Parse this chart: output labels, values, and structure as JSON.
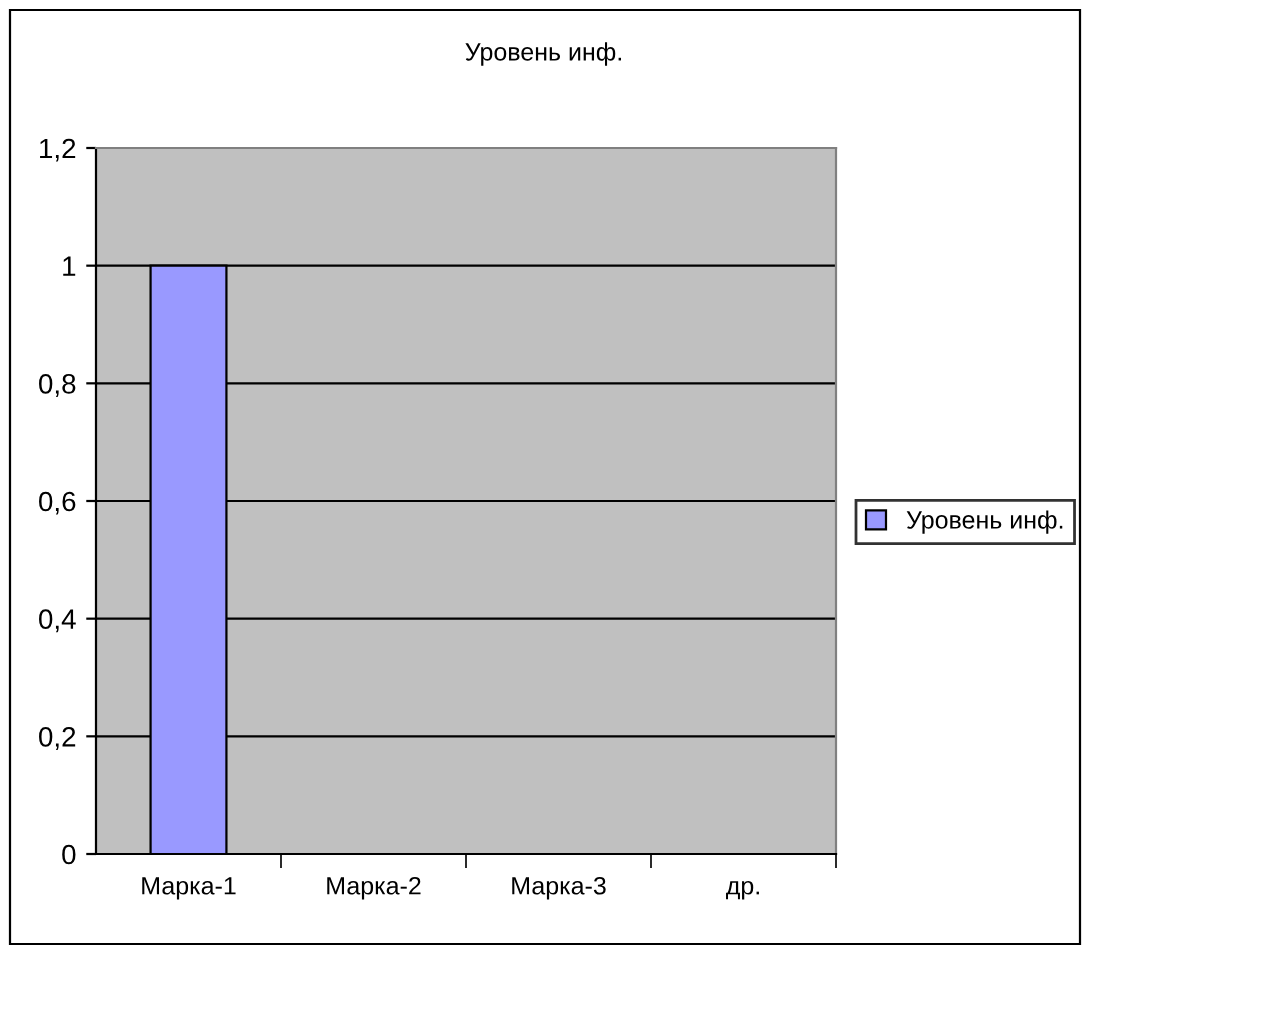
{
  "chart_data": {
    "type": "bar",
    "title": "Уровень инф.",
    "categories": [
      "Марка-1",
      "Марка-2",
      "Марка-3",
      "др."
    ],
    "series": [
      {
        "name": "Уровень инф.",
        "color": "#9999ff",
        "values": [
          1,
          0,
          0,
          0
        ]
      }
    ],
    "ylim": [
      0,
      1.2
    ],
    "yticks": [
      0,
      {
        "value": 0.2,
        "label": "0,2"
      },
      {
        "value": 0.4,
        "label": "0,4"
      },
      {
        "value": 0.6,
        "label": "0,6"
      },
      {
        "value": 0.8,
        "label": "0,8"
      },
      1,
      {
        "value": 1.2,
        "label": "1,2"
      }
    ],
    "grid": "y",
    "legend": "right"
  }
}
